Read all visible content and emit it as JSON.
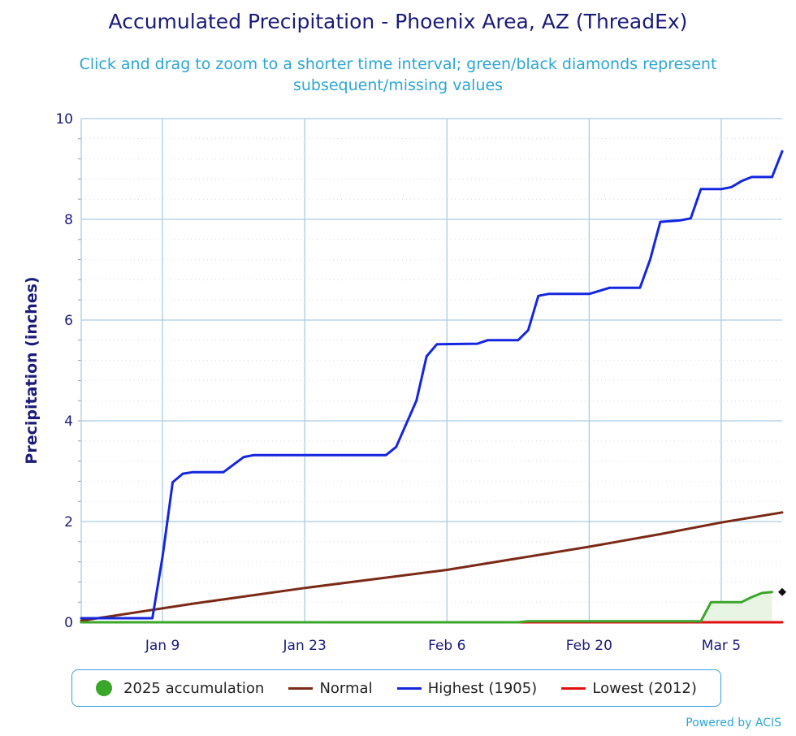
{
  "header": {
    "title": "Accumulated Precipitation - Phoenix Area, AZ (ThreadEx)",
    "subtitle": "Click and drag to zoom to a shorter time interval; green/black diamonds represent subsequent/missing values"
  },
  "footer": {
    "credit": "Powered by ACIS"
  },
  "chart_data": {
    "type": "line",
    "title": "Accumulated Precipitation - Phoenix Area, AZ (ThreadEx)",
    "subtitle": "Click and drag to zoom to a shorter time interval; green/black diamonds represent subsequent/missing values",
    "xlabel": "",
    "ylabel": "Precipitation (inches)",
    "x_domain": [
      "Jan 1",
      "Mar 11"
    ],
    "x_ticks": [
      "Jan 9",
      "Jan 23",
      "Feb 6",
      "Feb 20",
      "Mar 5"
    ],
    "ylim": [
      0,
      10
    ],
    "y_ticks": [
      0,
      2,
      4,
      6,
      8,
      10
    ],
    "grid": true,
    "legend_position": "bottom",
    "series": [
      {
        "name": "2025 accumulation",
        "color": "#3aa62a",
        "fill": "#e9f5e4",
        "points": [
          [
            "Jan 1",
            0.0
          ],
          [
            "Feb 13",
            0.0
          ],
          [
            "Feb 14",
            0.02
          ],
          [
            "Mar 3",
            0.02
          ],
          [
            "Mar 4",
            0.4
          ],
          [
            "Mar 7",
            0.4
          ],
          [
            "Mar 8",
            0.5
          ],
          [
            "Mar 9",
            0.58
          ],
          [
            "Mar 10",
            0.6
          ]
        ],
        "end_marker": {
          "x": "Mar 11",
          "y": 0.6,
          "color": "#111111"
        }
      },
      {
        "name": "Normal",
        "color": "#7a2a16",
        "points": [
          [
            "Jan 1",
            0.03
          ],
          [
            "Jan 12",
            0.37
          ],
          [
            "Jan 23",
            0.68
          ],
          [
            "Feb 6",
            1.04
          ],
          [
            "Feb 20",
            1.5
          ],
          [
            "Feb 27",
            1.75
          ],
          [
            "Mar 5",
            1.98
          ],
          [
            "Mar 11",
            2.18
          ]
        ]
      },
      {
        "name": "Highest (1905)",
        "color": "#1426e0",
        "points": [
          [
            "Jan 1",
            0.08
          ],
          [
            "Jan 8",
            0.08
          ],
          [
            "Jan 9",
            1.3
          ],
          [
            "Jan 10",
            2.78
          ],
          [
            "Jan 11",
            2.95
          ],
          [
            "Jan 12",
            2.98
          ],
          [
            "Jan 15",
            2.98
          ],
          [
            "Jan 17",
            3.28
          ],
          [
            "Jan 18",
            3.32
          ],
          [
            "Jan 31",
            3.32
          ],
          [
            "Feb 1",
            3.48
          ],
          [
            "Feb 3",
            4.4
          ],
          [
            "Feb 4",
            5.28
          ],
          [
            "Feb 5",
            5.52
          ],
          [
            "Feb 9",
            5.53
          ],
          [
            "Feb 10",
            5.6
          ],
          [
            "Feb 13",
            5.6
          ],
          [
            "Feb 14",
            5.8
          ],
          [
            "Feb 15",
            6.48
          ],
          [
            "Feb 16",
            6.52
          ],
          [
            "Feb 20",
            6.52
          ],
          [
            "Feb 22",
            6.64
          ],
          [
            "Feb 25",
            6.64
          ],
          [
            "Feb 26",
            7.2
          ],
          [
            "Feb 27",
            7.95
          ],
          [
            "Mar 1",
            7.98
          ],
          [
            "Mar 2",
            8.02
          ],
          [
            "Mar 3",
            8.6
          ],
          [
            "Mar 4",
            8.6
          ],
          [
            "Mar 5",
            8.6
          ],
          [
            "Mar 6",
            8.64
          ],
          [
            "Mar 7",
            8.76
          ],
          [
            "Mar 8",
            8.84
          ],
          [
            "Mar 10",
            8.84
          ],
          [
            "Mar 11",
            9.35
          ]
        ]
      },
      {
        "name": "Lowest (2012)",
        "color": "#e01010",
        "points": [
          [
            "Jan 1",
            0.0
          ],
          [
            "Mar 11",
            0.0
          ]
        ]
      }
    ]
  }
}
